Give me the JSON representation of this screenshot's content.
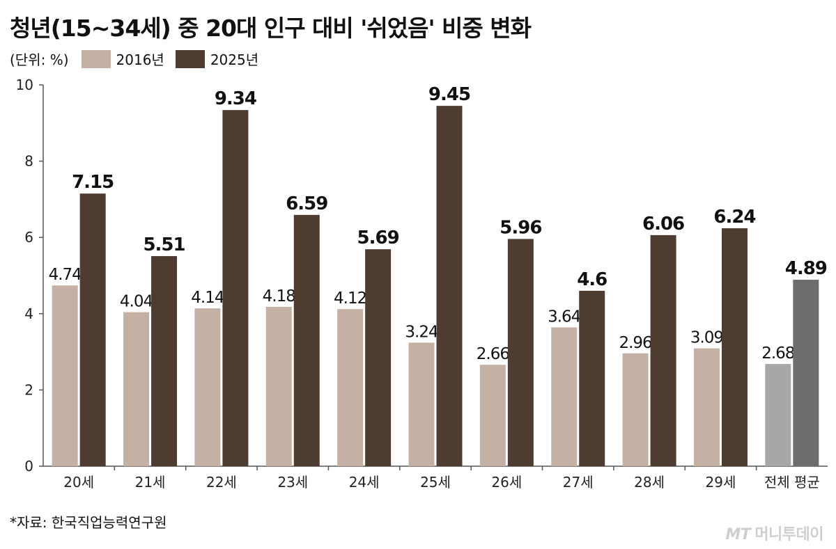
{
  "title": "청년(15~34세) 중 20대 인구 대비 '쉬었음' 비중 변화",
  "unit_label": "(단위: %)",
  "source": "*자료: 한국직업능력연구원",
  "brand": {
    "mark": "MT",
    "name": "머니투데이"
  },
  "colors": {
    "s2016": "#c4b1a3",
    "s2025": "#4e3c31",
    "avg2016": "#a7a7a9",
    "avg2025": "#6d6d70",
    "axis": "#555555"
  },
  "chart_data": {
    "type": "bar",
    "categories": [
      "20세",
      "21세",
      "22세",
      "23세",
      "24세",
      "25세",
      "26세",
      "27세",
      "28세",
      "29세",
      "전체 평균"
    ],
    "series": [
      {
        "name": "2016년",
        "values": [
          4.74,
          4.04,
          4.14,
          4.18,
          4.12,
          3.24,
          2.66,
          3.64,
          2.96,
          3.09,
          2.68
        ]
      },
      {
        "name": "2025년",
        "values": [
          7.15,
          5.51,
          9.34,
          6.59,
          5.69,
          9.45,
          5.96,
          4.6,
          6.06,
          6.24,
          4.89
        ]
      }
    ],
    "data_labels": [
      [
        "4.74",
        "4.04",
        "4.14",
        "4.18",
        "4.12",
        "3.24",
        "2.66",
        "3.64",
        "2.96",
        "3.09",
        "2.68"
      ],
      [
        "7.15",
        "5.51",
        "9.34",
        "6.59",
        "5.69",
        "9.45",
        "5.96",
        "4.6",
        "6.06",
        "6.24",
        "4.89"
      ]
    ],
    "ylim": [
      0,
      10
    ],
    "yticks": [
      0,
      2,
      4,
      6,
      8,
      10
    ],
    "ytick_labels": [
      "0",
      "2",
      "4",
      "6",
      "8",
      "10"
    ],
    "grid": false,
    "legend_position": "top-left"
  }
}
